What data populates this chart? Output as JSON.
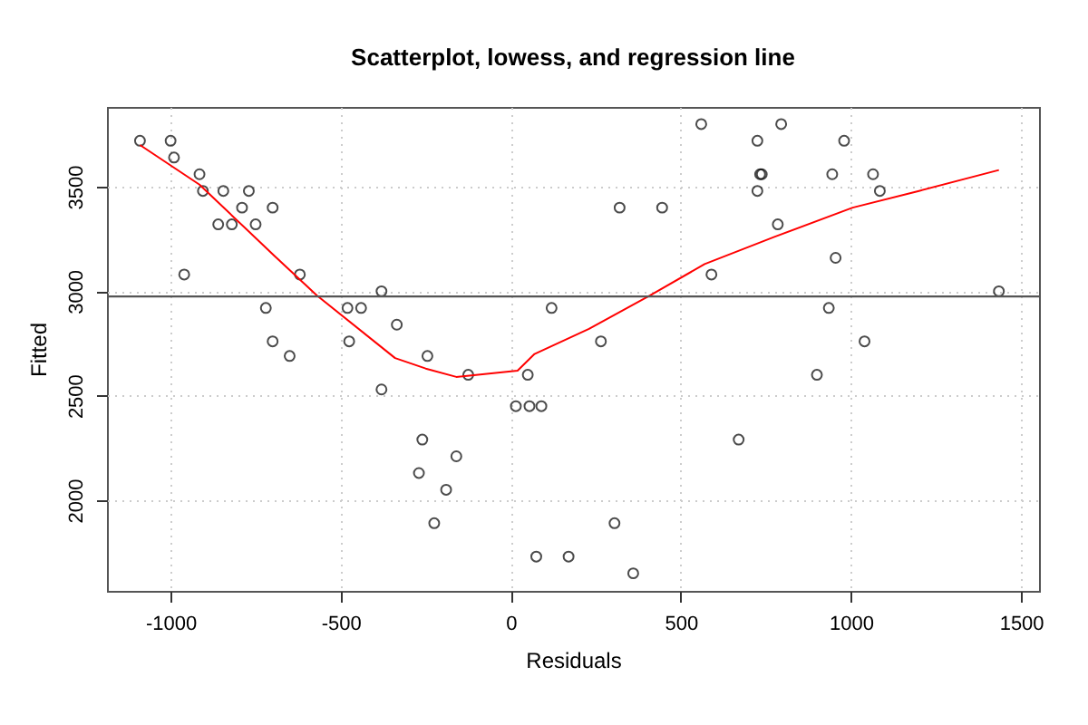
{
  "chart_data": {
    "type": "scatter",
    "title": "Scatterplot, lowess, and regression line",
    "xlabel": "Residuals",
    "ylabel": "Fitted",
    "xlim": [
      -1187,
      1553
    ],
    "ylim": [
      1566,
      3882
    ],
    "xticks": [
      -1000,
      -500,
      0,
      500,
      1000,
      1500
    ],
    "yticks": [
      2000,
      2500,
      3000,
      3500
    ],
    "grid": true,
    "series": [
      {
        "color": "#000000",
        "marker": "circle",
        "x": [
          -1090,
          -1000,
          -990,
          -915,
          -905,
          -845,
          -770,
          -790,
          -700,
          -860,
          -820,
          -750,
          -960,
          -620,
          -380,
          -720,
          -480,
          -440,
          -700,
          -650,
          -475,
          -335,
          -245,
          -125,
          -380,
          50,
          15,
          55,
          90,
          120,
          -260,
          -160,
          -270,
          -190,
          -225,
          75,
          170,
          560,
          795,
          725,
          980,
          733,
          738,
          945,
          1065,
          725,
          1085,
          320,
          445,
          785,
          955,
          590,
          1435,
          935,
          265,
          1040,
          900,
          670,
          305,
          360
        ],
        "values": [
          3720,
          3720,
          3640,
          3560,
          3480,
          3480,
          3480,
          3400,
          3400,
          3320,
          3320,
          3320,
          3080,
          3080,
          3000,
          2920,
          2920,
          2920,
          2760,
          2690,
          2760,
          2840,
          2690,
          2600,
          2530,
          2600,
          2450,
          2450,
          2450,
          2920,
          2290,
          2210,
          2130,
          2050,
          1890,
          1730,
          1730,
          3800,
          3800,
          3720,
          3720,
          3560,
          3560,
          3560,
          3560,
          3480,
          3480,
          3400,
          3400,
          3320,
          3160,
          3080,
          3000,
          2920,
          2760,
          2760,
          2600,
          2290,
          1890,
          1650
        ]
      },
      {
        "type": "line",
        "color": "#ff0000",
        "marker": "none",
        "x": [
          -1090,
          -915,
          -695,
          -570,
          -340,
          -250,
          -160,
          20,
          70,
          230,
          410,
          570,
          775,
          1005,
          1200,
          1435
        ],
        "values": [
          3700,
          3510,
          3170,
          2980,
          2680,
          2630,
          2590,
          2620,
          2700,
          2820,
          2980,
          3130,
          3260,
          3400,
          3480,
          3580
        ]
      }
    ],
    "ref_lines": [
      {
        "axis": "y",
        "value": 2975,
        "color": "#555555"
      }
    ]
  }
}
